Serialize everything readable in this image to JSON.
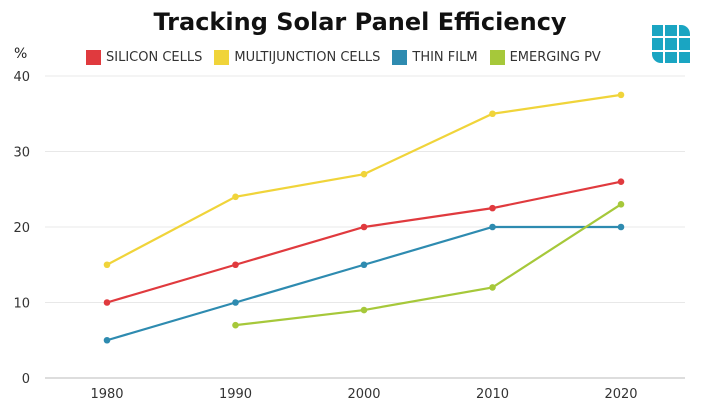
{
  "chart_data": {
    "type": "line",
    "title": "Tracking Solar Panel Efficiency",
    "ylabel": "%",
    "xlabel": "",
    "categories": [
      "1980",
      "1990",
      "2000",
      "2010",
      "2020"
    ],
    "ylim": [
      0,
      40
    ],
    "yticks": [
      "0",
      "10",
      "20",
      "30",
      "40"
    ],
    "grid": true,
    "legend": "top",
    "series": [
      {
        "name": "SILICON CELLS",
        "color": "#e03a3e",
        "values": [
          10,
          15,
          20,
          22.5,
          26
        ]
      },
      {
        "name": "MULTIJUNCTION CELLS",
        "color": "#f0d43a",
        "values": [
          15,
          24,
          27,
          35,
          37.5
        ]
      },
      {
        "name": "THIN FILM",
        "color": "#2e8bb0",
        "values": [
          5,
          10,
          15,
          20,
          20
        ]
      },
      {
        "name": "EMERGING PV",
        "color": "#a6c83a",
        "values": [
          null,
          7,
          9,
          12,
          23
        ]
      }
    ]
  },
  "logo": {
    "icon": "grid-logo-icon",
    "color": "#1aa5c2"
  }
}
